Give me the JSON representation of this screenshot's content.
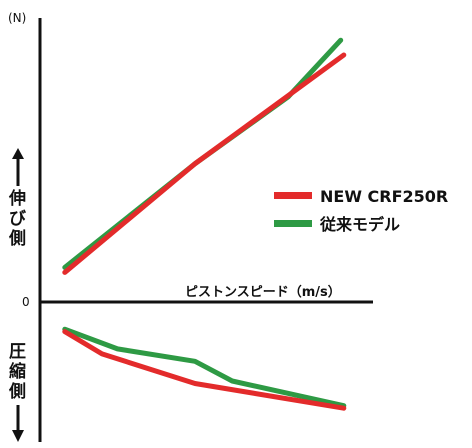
{
  "chart_data": {
    "type": "line",
    "xlabel": "ピストンスピード（m/s）",
    "ylabel_unit": "(N)",
    "y_zero_label": "0",
    "y_upper_label": [
      "伸",
      "び",
      "側"
    ],
    "y_lower_label": [
      "圧",
      "縮",
      "側"
    ],
    "legend_position": "right",
    "grid": false,
    "series": [
      {
        "name": "NEW CRF250R",
        "color": "#e32b2b",
        "tension": [
          [
            0.08,
            0.12
          ],
          [
            0.5,
            0.56
          ],
          [
            0.98,
            1.0
          ]
        ],
        "compression": [
          [
            0.08,
            -0.12
          ],
          [
            0.2,
            -0.21
          ],
          [
            0.5,
            -0.33
          ],
          [
            0.98,
            -0.43
          ]
        ]
      },
      {
        "name": "従来モデル",
        "color": "#2e9a44",
        "tension": [
          [
            0.08,
            0.14
          ],
          [
            0.5,
            0.56
          ],
          [
            0.8,
            0.83
          ],
          [
            0.97,
            1.06
          ]
        ],
        "compression": [
          [
            0.08,
            -0.11
          ],
          [
            0.25,
            -0.19
          ],
          [
            0.5,
            -0.24
          ],
          [
            0.62,
            -0.32
          ],
          [
            0.98,
            -0.42
          ]
        ]
      }
    ]
  }
}
